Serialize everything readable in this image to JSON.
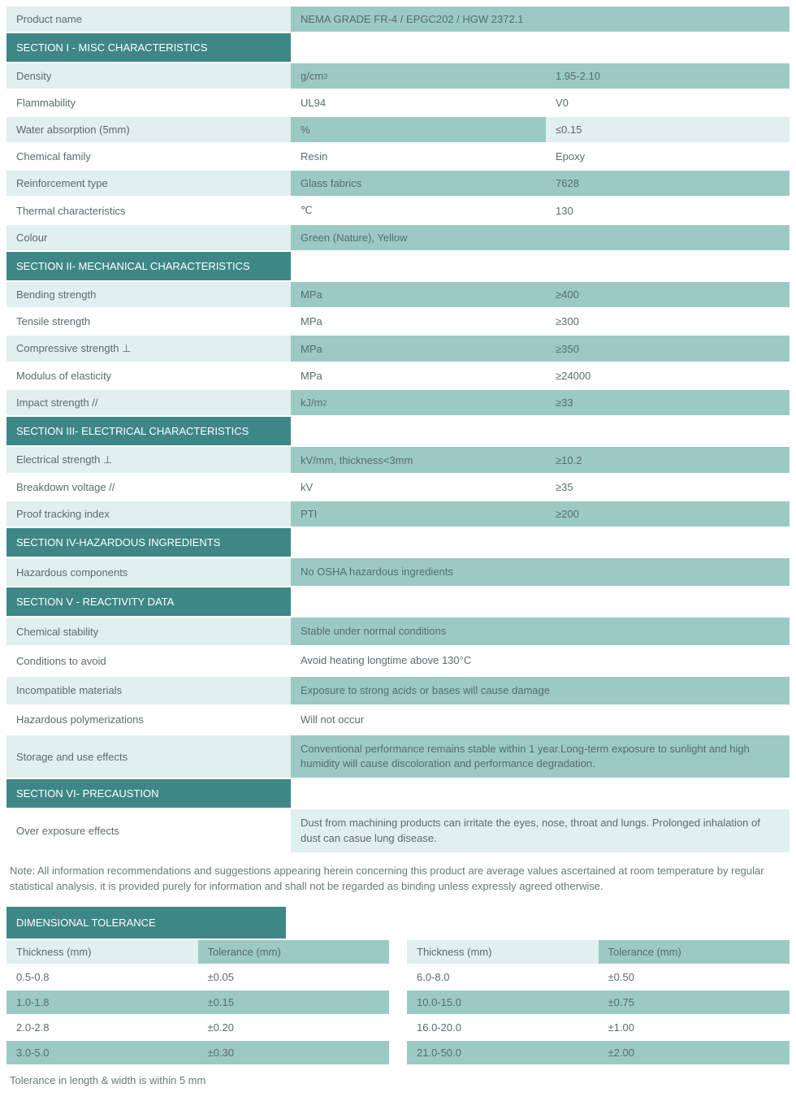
{
  "colors": {
    "header_bg": "#3f8787",
    "header_text": "#ffffff",
    "row_light": "#e0f0ee",
    "row_teal": "#9bcac5",
    "row_white": "#ffffff",
    "text": "#5a6b6b",
    "product_bg_c1": "#e0f0ee",
    "product_bg_rest": "#9bcac5"
  },
  "product": {
    "label": "Product name",
    "value": "NEMA GRADE FR-4 / EPGC202 / HGW 2372.1"
  },
  "sections": [
    {
      "title": "SECTION I - MISC CHARACTERISTICS",
      "rows": [
        {
          "c1": "Density",
          "c2_html": "g/cm<sup>3</sup>",
          "c3": "1.95-2.10",
          "style": "light-teal"
        },
        {
          "c1": "Flammability",
          "c2": "UL94",
          "c3": "V0",
          "style": "white-white"
        },
        {
          "c1": "Water absorption (5mm)",
          "c2": "%",
          "c3": "≤0.15",
          "style": "light-teal-lightend"
        },
        {
          "c1": "Chemical family",
          "c2": "Resin",
          "c3": "Epoxy",
          "style": "white-white"
        },
        {
          "c1": "Reinforcement type",
          "c2": "Glass fabrics",
          "c3": "7628",
          "style": "light-teal"
        },
        {
          "c1": "Thermal characteristics",
          "c2": "℃",
          "c3": "130",
          "style": "white-white"
        },
        {
          "c1": "Colour",
          "c2": "Green (Nature), Yellow",
          "c3": "",
          "style": "light-teal"
        }
      ]
    },
    {
      "title": "SECTION II- MECHANICAL CHARACTERISTICS",
      "rows": [
        {
          "c1": "Bending strength",
          "c2": "MPa",
          "c3": "≥400",
          "style": "light-teal"
        },
        {
          "c1": "Tensile strength",
          "c2": "MPa",
          "c3": "≥300",
          "style": "white-white"
        },
        {
          "c1": "Compressive strength ⊥",
          "c2": "MPa",
          "c3": "≥350",
          "style": "light-teal"
        },
        {
          "c1": "Modulus of elasticity",
          "c2": "MPa",
          "c3": "≥24000",
          "style": "white-white"
        },
        {
          "c1": "Impact strength //",
          "c2_html": "kJ/m<sup>2</sup>",
          "c3": "≥33",
          "style": "light-teal"
        }
      ]
    },
    {
      "title": "SECTION III- ELECTRICAL CHARACTERISTICS",
      "rows": [
        {
          "c1": "Electrical strength ⊥",
          "c2": "kV/mm, thickness<3mm",
          "c3": "≥10.2",
          "style": "light-teal"
        },
        {
          "c1": "Breakdown voltage //",
          "c2": "kV",
          "c3": "≥35",
          "style": "white-white"
        },
        {
          "c1": "Proof tracking index",
          "c2": "PTI",
          "c3": "≥200",
          "style": "light-teal"
        }
      ]
    },
    {
      "title": "SECTION IV-HAZARDOUS INGREDIENTS",
      "rows": [
        {
          "c1": "Hazardous components",
          "c2wide": "No OSHA hazardous ingredients",
          "style": "light-teal"
        }
      ]
    },
    {
      "title": "SECTION V - REACTIVITY DATA",
      "rows": [
        {
          "c1": "Chemical stability",
          "c2wide": "Stable under normal conditions",
          "style": "light-teal"
        },
        {
          "c1": "Conditions to avoid",
          "c2wide": "Avoid heating longtime above 130°C",
          "style": "white-white"
        },
        {
          "c1": "Incompatible materials",
          "c2wide": "Exposure to strong acids or bases will cause damage",
          "style": "light-teal"
        },
        {
          "c1": "Hazardous polymerizations",
          "c2wide": "Will not occur",
          "style": "white-white"
        },
        {
          "c1": "Storage and use effects",
          "c2wide": "Conventional performance remains stable within 1 year.Long-term exposure to sunlight and high humidity will cause discoloration and performance degradation.",
          "style": "light-teal"
        }
      ]
    },
    {
      "title": "SECTION VI- PRECAUSTION",
      "rows": [
        {
          "c1": "Over exposure effects",
          "c2wide": "Dust from machining products can irritate the eyes, nose, throat and lungs. Prolonged inhalation of dust can casue lung disease.",
          "style": "white-light"
        }
      ]
    }
  ],
  "note": "Note: All information recommendations and suggestions appearing herein concerning this product are average values ascertained at room temperature by regular statistical analysis. it is provided purely for information and shall not be regarded as binding unless expressly agreed otherwise.",
  "dimensional": {
    "title": "DIMENSIONAL TOLERANCE",
    "headers": {
      "thickness": "Thickness (mm)",
      "tolerance": "Tolerance (mm)"
    },
    "left": [
      {
        "t": "0.5-0.8",
        "tol": "±0.05",
        "style": "white"
      },
      {
        "t": "1.0-1.8",
        "tol": "±0.15",
        "style": "teal"
      },
      {
        "t": "2.0-2.8",
        "tol": "±0.20",
        "style": "white"
      },
      {
        "t": "3.0-5.0",
        "tol": "±0.30",
        "style": "teal"
      }
    ],
    "right": [
      {
        "t": "6.0-8.0",
        "tol": "±0.50",
        "style": "white"
      },
      {
        "t": "10.0-15.0",
        "tol": "±0.75",
        "style": "teal"
      },
      {
        "t": "16.0-20.0",
        "tol": "±1.00",
        "style": "white"
      },
      {
        "t": "21.0-50.0",
        "tol": "±2.00",
        "style": "teal"
      }
    ]
  },
  "footnote": "Tolerance in length & width is within 5 mm"
}
